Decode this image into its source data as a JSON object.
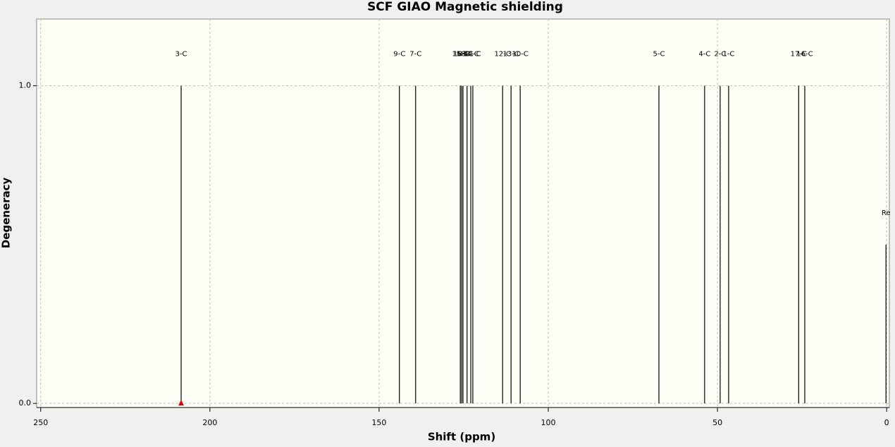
{
  "chart_data": {
    "type": "stick",
    "title": "SCF GIAO Magnetic shielding",
    "x_label": "Shift (ppm)",
    "y_label": "Degeneracy",
    "x": [
      208.5,
      144.0,
      139.2,
      126.0,
      125.6,
      125.2,
      124.0,
      122.9,
      122.3,
      113.5,
      111.0,
      108.3,
      67.3,
      53.8,
      49.2,
      46.7,
      26.0,
      24.2,
      0.2
    ],
    "values": [
      1,
      1,
      1,
      1,
      1,
      1,
      1,
      1,
      1,
      1,
      1,
      1,
      1,
      1,
      1,
      1,
      1,
      1,
      0.5
    ],
    "labels": [
      "3-C",
      "9-C",
      "7-C",
      "15-C",
      "18-C",
      "6-C",
      "8-C",
      "14-C",
      "11-C",
      "12-C",
      "13-C",
      "10-C",
      "5-C",
      "4-C",
      "2-C",
      "1-C",
      "17-C",
      "16-C",
      "Re"
    ],
    "color": "#000000",
    "xlim": [
      251.2,
      -0.8
    ],
    "ylim": [
      -0.013,
      1.21
    ],
    "xticks": [
      250,
      200,
      150,
      100,
      50,
      0
    ],
    "yticks": [
      {
        "value": 0,
        "label": "0.0"
      },
      {
        "value": 1,
        "label": "1.0"
      }
    ],
    "grid": true
  }
}
